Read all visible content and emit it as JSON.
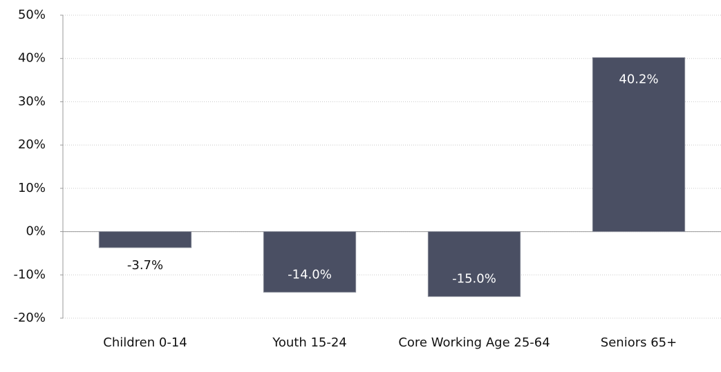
{
  "chart_data": {
    "type": "bar",
    "categories": [
      "Children 0-14",
      "Youth 15-24",
      "Core Working Age 25-64",
      "Seniors 65+"
    ],
    "values": [
      -3.7,
      -14.0,
      -15.0,
      40.2
    ],
    "value_labels": [
      "-3.7%",
      "-14.0%",
      "-15.0%",
      "40.2%"
    ],
    "color": "#4a4f63",
    "ylim": [
      -20,
      50
    ],
    "yticks": [
      {
        "value": -20,
        "label": "-20%"
      },
      {
        "value": -10,
        "label": "-10%"
      },
      {
        "value": 0,
        "label": "0%"
      },
      {
        "value": 10,
        "label": "10%"
      },
      {
        "value": 20,
        "label": "20%"
      },
      {
        "value": 30,
        "label": "30%"
      },
      {
        "value": 40,
        "label": "40%"
      },
      {
        "value": 50,
        "label": "50%"
      }
    ],
    "grid": true
  }
}
